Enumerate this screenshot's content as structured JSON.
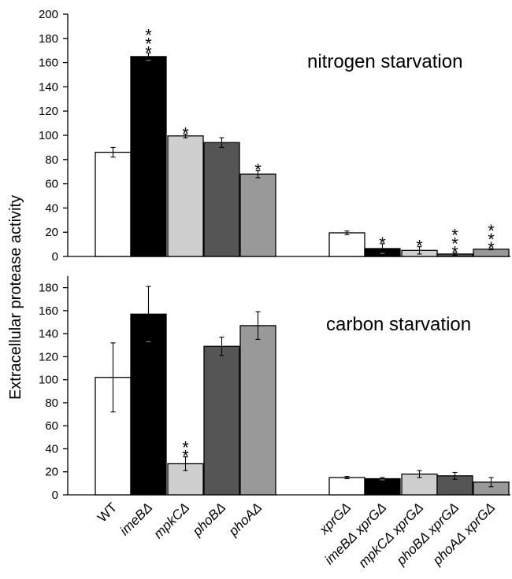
{
  "chart_data": {
    "type": "bar",
    "ylabel": "Extracellular protease activity",
    "categories": [
      [
        {
          "text": "WT",
          "italic": false
        }
      ],
      [
        {
          "text": "imeBΔ",
          "italic": true
        }
      ],
      [
        {
          "text": "mpkCΔ",
          "italic": true
        }
      ],
      [
        {
          "text": "phoBΔ",
          "italic": true
        }
      ],
      [
        {
          "text": "phoAΔ",
          "italic": true
        }
      ],
      [
        {
          "text": "xprGΔ",
          "italic": true
        }
      ],
      [
        {
          "text": "imeBΔ xprGΔ",
          "italic": true
        }
      ],
      [
        {
          "text": "mpkCΔ xprGΔ",
          "italic": true
        }
      ],
      [
        {
          "text": "phoBΔ xprGΔ",
          "italic": true
        }
      ],
      [
        {
          "text": "phoAΔ xprGΔ",
          "italic": true
        }
      ]
    ],
    "category_labels": [
      "WT",
      "imeBΔ",
      "mpkCΔ",
      "phoBΔ",
      "phoAΔ",
      "xprGΔ",
      "imeBΔ xprGΔ",
      "mpkCΔ xprGΔ",
      "phoBΔ xprGΔ",
      "phoAΔ xprGΔ"
    ],
    "bar_colors": [
      "#ffffff",
      "#000000",
      "#cfcfcf",
      "#555555",
      "#999999",
      "#ffffff",
      "#000000",
      "#cfcfcf",
      "#555555",
      "#999999"
    ],
    "panels": [
      {
        "title": "nitrogen starvation",
        "ylim": [
          0,
          200
        ],
        "yticks": [
          0,
          20,
          40,
          60,
          80,
          100,
          120,
          140,
          160,
          180,
          200
        ],
        "values": [
          86,
          165,
          99.5,
          94,
          68,
          19.5,
          6.5,
          5,
          2,
          6
        ],
        "errors": [
          4,
          3,
          1.5,
          4,
          3,
          1.5,
          4,
          3,
          1,
          0.5
        ],
        "significance": [
          "",
          "***",
          "*",
          "",
          "*",
          "",
          "*",
          "*",
          "***",
          "***"
        ]
      },
      {
        "title": "carbon starvation",
        "ylim": [
          0,
          190
        ],
        "yticks": [
          0,
          20,
          40,
          60,
          80,
          100,
          120,
          140,
          160,
          180
        ],
        "values": [
          102,
          157,
          27,
          129,
          147,
          15,
          14,
          18,
          16.5,
          11
        ],
        "errors": [
          30,
          24,
          6,
          8,
          12,
          1,
          1,
          3,
          3,
          4
        ],
        "significance": [
          "",
          "",
          "**",
          "",
          "",
          "",
          "",
          "",
          "",
          ""
        ]
      }
    ]
  }
}
